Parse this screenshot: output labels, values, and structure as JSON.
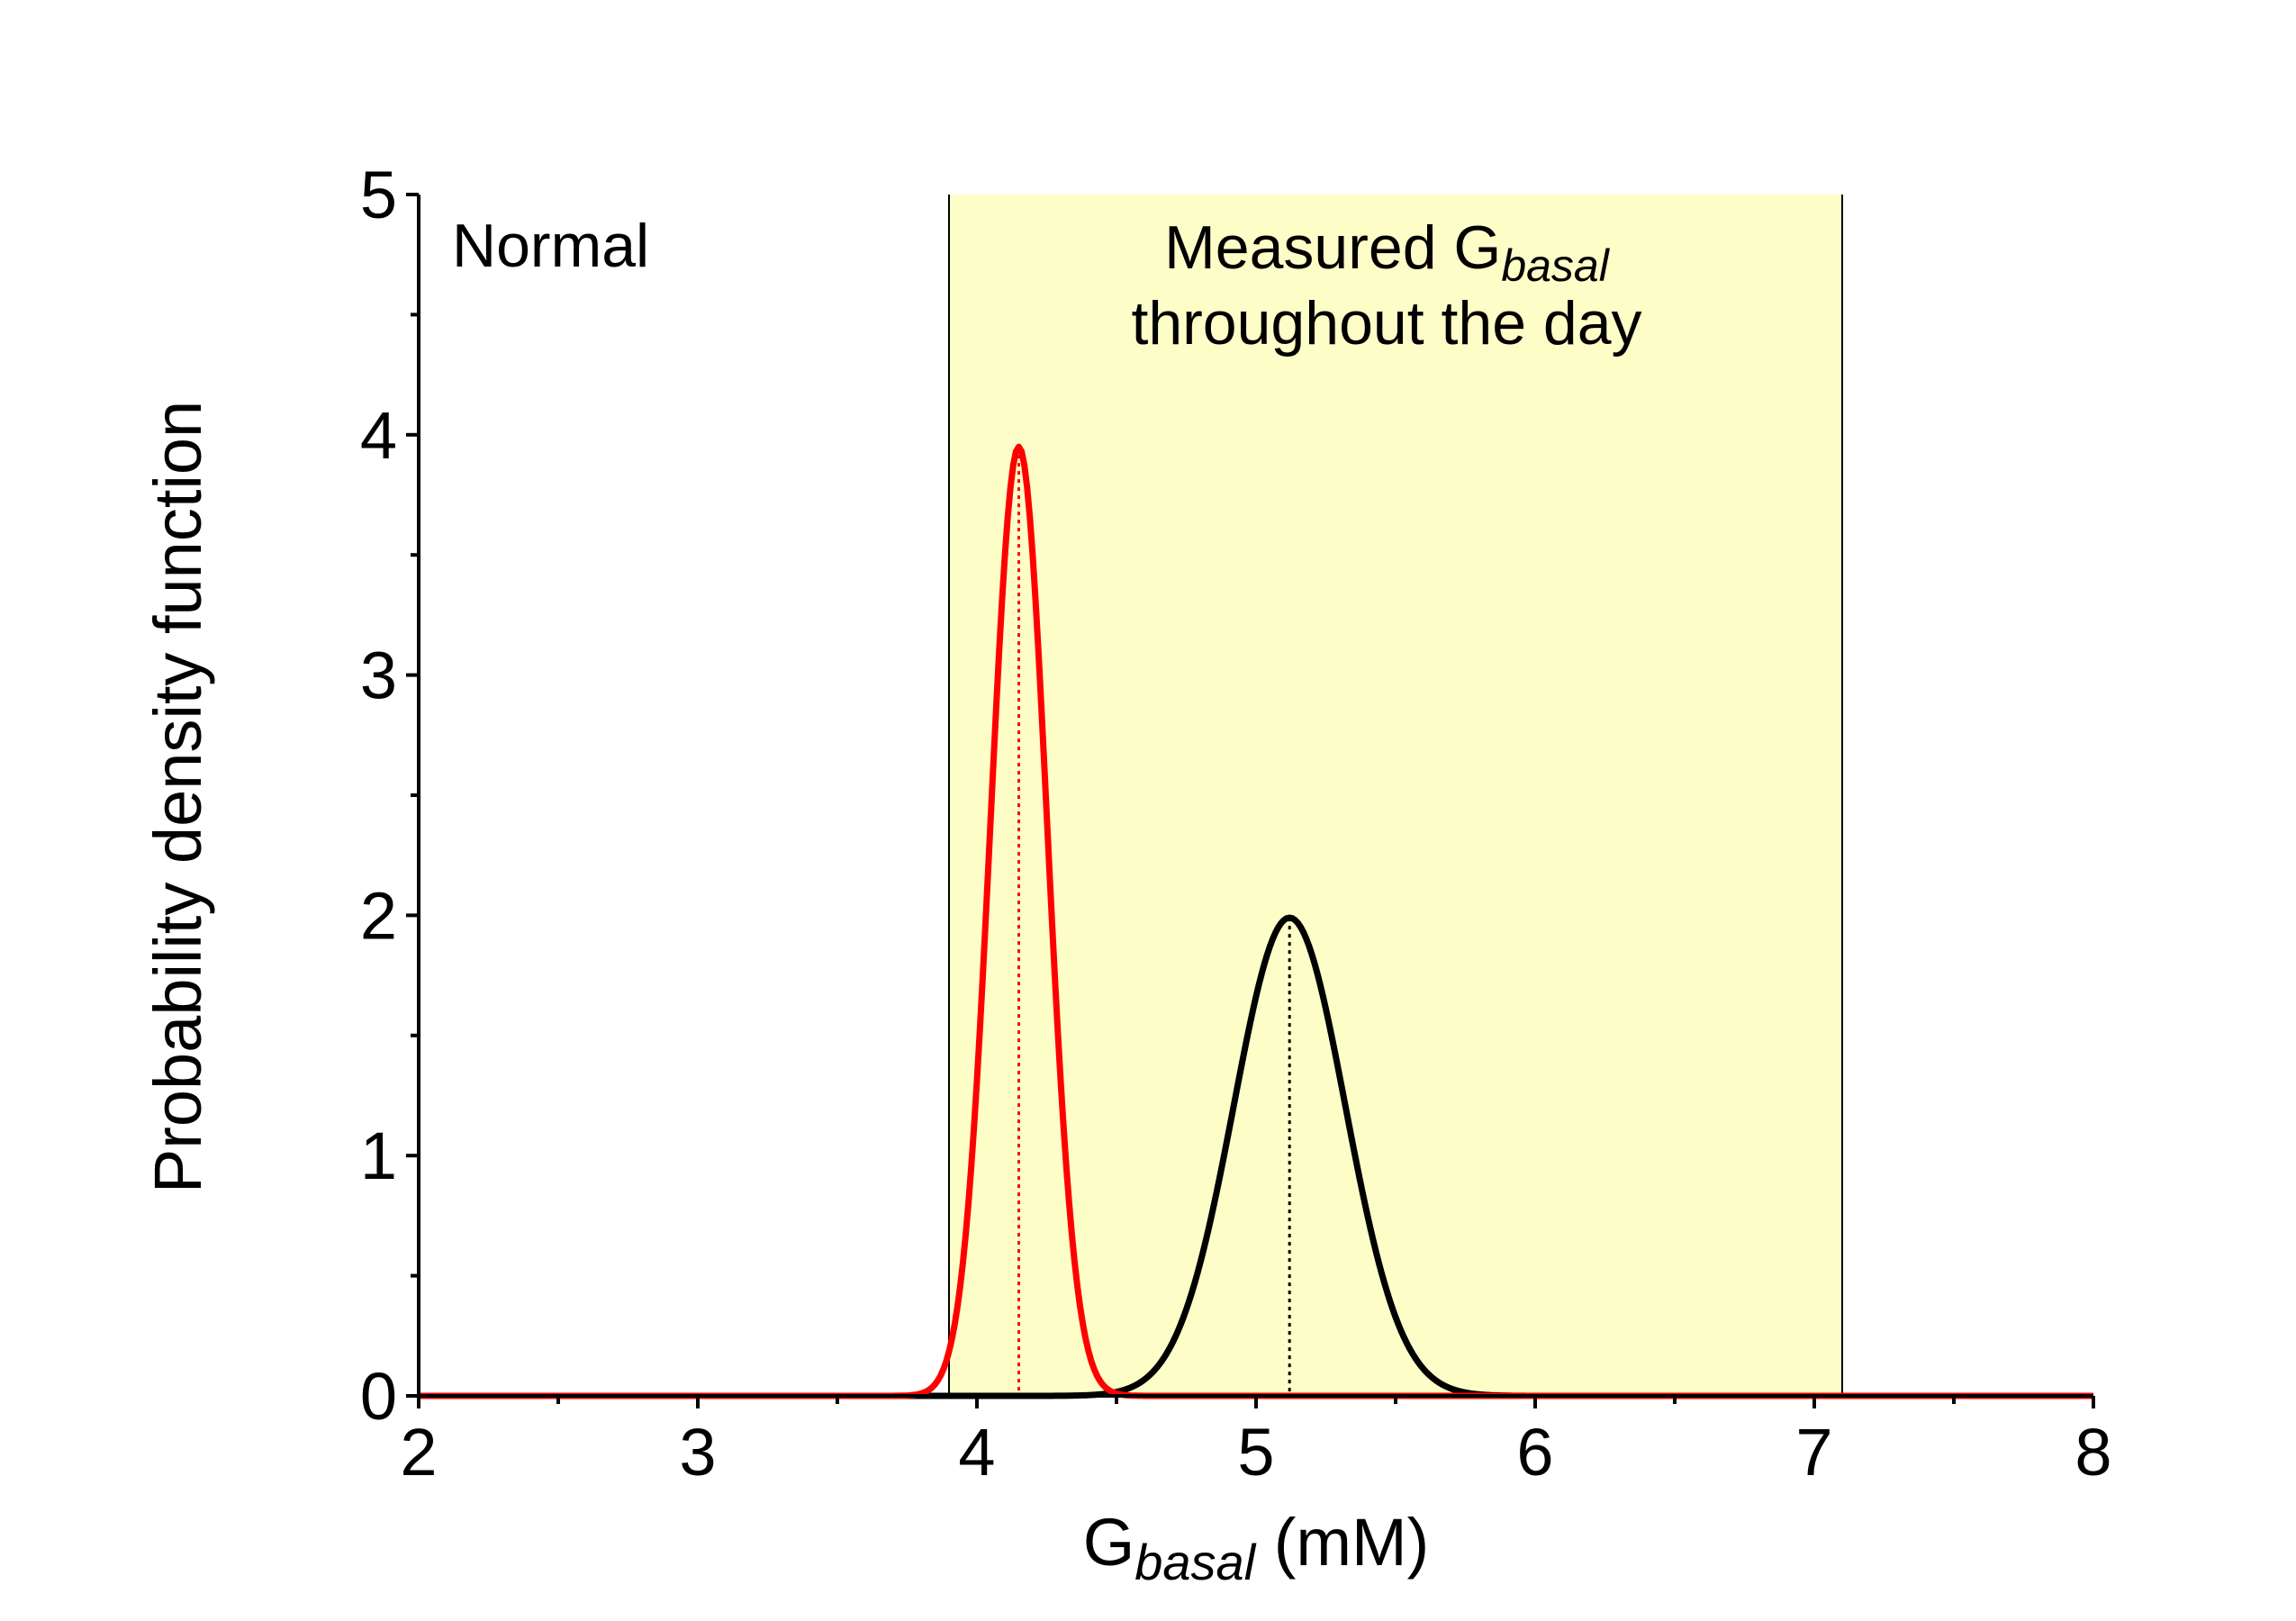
{
  "chart_data": {
    "type": "line",
    "title": "",
    "xlabel": {
      "main": "G",
      "sub": "basal",
      "suffix": " (mM)"
    },
    "ylabel": "Probability density function",
    "xlim": [
      2,
      8
    ],
    "ylim": [
      0,
      5
    ],
    "x_ticks": [
      "2",
      "3",
      "4",
      "5",
      "6",
      "7",
      "8"
    ],
    "y_ticks": [
      "0",
      "1",
      "2",
      "3",
      "4",
      "5"
    ],
    "grid": false,
    "annotations": {
      "corner_label": "Normal",
      "region_label_line1_main": "Measured G",
      "region_label_line1_sub": "basal",
      "region_label_line2": "throughout the day"
    },
    "shaded_region": {
      "x_start": 3.9,
      "x_end": 7.1,
      "color": "#fdfdc8"
    },
    "series": [
      {
        "type": "normal_pdf",
        "mean": 5.12,
        "sd": 0.2,
        "color": "#000000",
        "peak": 1.99
      },
      {
        "type": "normal_pdf",
        "mean": 4.15,
        "sd": 0.101,
        "color": "#ff0000",
        "peak": 3.95
      }
    ],
    "mean_markers": [
      {
        "x": 5.12,
        "y_top": 1.99,
        "color": "#000000",
        "style": "dotted"
      },
      {
        "x": 4.15,
        "y_top": 3.95,
        "color": "#ff0000",
        "style": "dotted"
      }
    ]
  }
}
